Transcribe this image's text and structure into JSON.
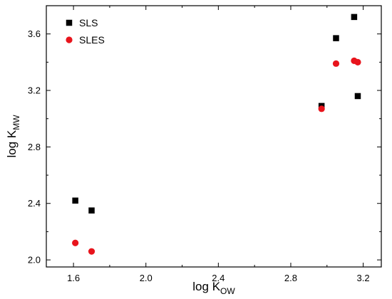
{
  "chart_data": {
    "type": "scatter",
    "title": "",
    "xlabel": {
      "main": "log  K",
      "sub": "OW"
    },
    "ylabel": {
      "main": "log  K",
      "sub": "MW"
    },
    "xlim": [
      1.45,
      3.3
    ],
    "ylim": [
      1.95,
      3.8
    ],
    "x_ticks": [
      1.6,
      2.0,
      2.4,
      2.8,
      3.2
    ],
    "x_tick_labels": [
      "1.6",
      "2.0",
      "2.4",
      "2.8",
      "3.2"
    ],
    "y_ticks": [
      2.0,
      2.4,
      2.8,
      3.2,
      3.6
    ],
    "y_tick_labels": [
      "2.0",
      "2.4",
      "2.8",
      "3.2",
      "3.6"
    ],
    "grid": false,
    "legend_position": "top-left",
    "series": [
      {
        "name": "SLS",
        "marker": "square",
        "color": "#000000",
        "points": [
          {
            "x": 1.61,
            "y": 2.42
          },
          {
            "x": 1.7,
            "y": 2.35
          },
          {
            "x": 2.97,
            "y": 3.09
          },
          {
            "x": 3.05,
            "y": 3.57
          },
          {
            "x": 3.15,
            "y": 3.72
          },
          {
            "x": 3.17,
            "y": 3.16
          }
        ]
      },
      {
        "name": "SLES",
        "marker": "circle",
        "color": "#e8141c",
        "points": [
          {
            "x": 1.61,
            "y": 2.12
          },
          {
            "x": 1.7,
            "y": 2.06
          },
          {
            "x": 2.97,
            "y": 3.07
          },
          {
            "x": 3.05,
            "y": 3.39
          },
          {
            "x": 3.15,
            "y": 3.41
          },
          {
            "x": 3.17,
            "y": 3.4
          }
        ]
      }
    ]
  }
}
